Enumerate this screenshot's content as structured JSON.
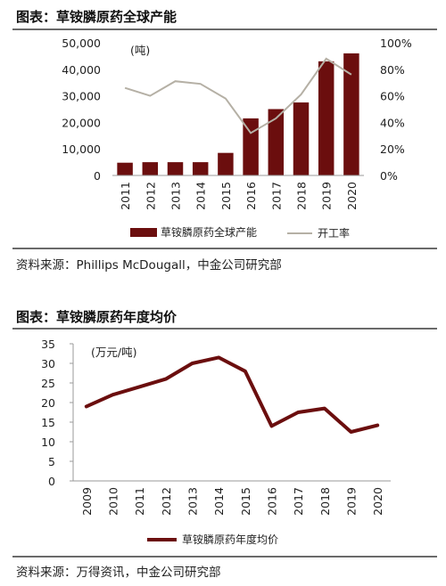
{
  "figures": [
    {
      "title": "图表：草铵膦原药全球产能",
      "source": "资料来源：Phillips McDougall，中金公司研究部"
    },
    {
      "title": "图表：草铵膦原药年度均价",
      "source": "资料来源：万得资讯，中金公司研究部"
    }
  ],
  "chart_data": [
    {
      "type": "bar",
      "title": "图表：草铵膦原药全球产能",
      "categories": [
        "2011",
        "2012",
        "2013",
        "2014",
        "2015",
        "2016",
        "2017",
        "2018",
        "2019",
        "2020"
      ],
      "unit_label": "(吨)",
      "series": [
        {
          "name": "草铵膦原药全球产能",
          "type": "bar",
          "axis": "left",
          "color": "#6b0e0e",
          "values": [
            4800,
            5000,
            5000,
            5000,
            8500,
            21500,
            25000,
            27500,
            43000,
            46000
          ]
        },
        {
          "name": "开工率",
          "type": "line",
          "axis": "right",
          "color": "#b5b0a5",
          "values": [
            66,
            60,
            71,
            69,
            58,
            32,
            43,
            61,
            88,
            76
          ]
        }
      ],
      "ylim_left": [
        0,
        50000
      ],
      "yticks_left": [
        "0",
        "10,000",
        "20,000",
        "30,000",
        "40,000",
        "50,000"
      ],
      "ylim_right": [
        0,
        100
      ],
      "yticks_right": [
        "0%",
        "20%",
        "40%",
        "60%",
        "80%",
        "100%"
      ],
      "grid": false,
      "legend_position": "bottom"
    },
    {
      "type": "line",
      "title": "图表：草铵膦原药年度均价",
      "categories": [
        "2009",
        "2010",
        "2011",
        "2012",
        "2013",
        "2014",
        "2015",
        "2016",
        "2017",
        "2018",
        "2019",
        "2020"
      ],
      "unit_label": "(万元/吨)",
      "series": [
        {
          "name": "草铵膦原药年度均价",
          "color": "#6b0e0e",
          "values": [
            19,
            22,
            24,
            26,
            30,
            31.5,
            28,
            14,
            17.5,
            18.5,
            12.5,
            14.2
          ]
        }
      ],
      "ylim": [
        0,
        35
      ],
      "yticks": [
        "0",
        "5",
        "10",
        "15",
        "20",
        "25",
        "30",
        "35"
      ],
      "grid": false,
      "legend_position": "bottom"
    }
  ]
}
